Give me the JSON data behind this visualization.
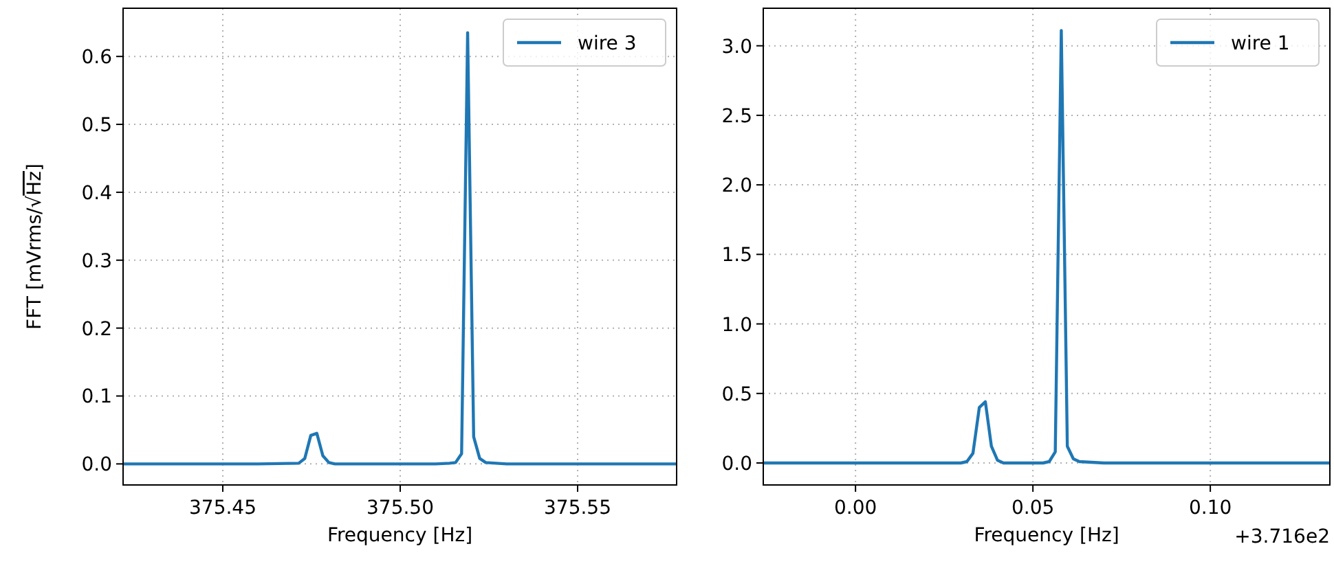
{
  "chart_data": [
    {
      "type": "line",
      "xlabel": "Frequency [Hz]",
      "ylabel": "FFT [mVrms/√Hz]",
      "xlim": [
        375.4219,
        375.5779
      ],
      "ylim": [
        -0.031,
        0.671
      ],
      "xticks": [
        {
          "value": 375.45,
          "label": "375.45"
        },
        {
          "value": 375.5,
          "label": "375.50"
        },
        {
          "value": 375.55,
          "label": "375.55"
        }
      ],
      "yticks": [
        {
          "value": 0,
          "label": "0.0"
        },
        0.1,
        0.2,
        0.3,
        0.4,
        0.5,
        0.6
      ],
      "grid": true,
      "legend": "top right",
      "line_style": "solid",
      "series": [
        {
          "name": "wire 3",
          "color": "#1f77b4",
          "x": [
            375.4219,
            375.44,
            375.46,
            375.4714,
            375.4731,
            375.4748,
            375.4765,
            375.4782,
            375.4799,
            375.4816,
            375.49,
            375.5,
            375.51,
            375.5139,
            375.5156,
            375.5173,
            375.519,
            375.5207,
            375.5224,
            375.5241,
            375.53,
            375.55,
            375.5779
          ],
          "values": [
            0,
            0,
            0,
            0.001,
            0.008,
            0.042,
            0.045,
            0.012,
            0.002,
            0,
            0,
            0,
            0,
            0.001,
            0.002,
            0.015,
            0.635,
            0.04,
            0.008,
            0.002,
            0,
            0,
            0
          ]
        }
      ]
    },
    {
      "type": "line",
      "xlabel": "Frequency [Hz]",
      "annotations": [
        "+3.716e2"
      ],
      "xlim": [
        -0.026,
        0.1337
      ],
      "ylim": [
        -0.158,
        3.27
      ],
      "xticks": [
        {
          "value": 0,
          "label": "0.00"
        },
        0.05,
        {
          "value": 0.1,
          "label": "0.10"
        }
      ],
      "yticks": [
        {
          "value": 0,
          "label": "0.0"
        },
        0.5,
        {
          "value": 1,
          "label": "1.0"
        },
        1.5,
        {
          "value": 2,
          "label": "2.0"
        },
        2.5,
        {
          "value": 3,
          "label": "3.0"
        }
      ],
      "grid": true,
      "legend": "top right",
      "line_style": "solid",
      "series": [
        {
          "name": "wire 1",
          "color": "#1f77b4",
          "x": [
            -0.026,
            0,
            0.02,
            0.0297,
            0.0314,
            0.0331,
            0.0349,
            0.0366,
            0.0383,
            0.04,
            0.0417,
            0.05,
            0.0529,
            0.0546,
            0.0563,
            0.058,
            0.0597,
            0.0614,
            0.0631,
            0.07,
            0.1,
            0.1337
          ],
          "values": [
            0,
            0,
            0,
            0,
            0.01,
            0.07,
            0.4,
            0.44,
            0.12,
            0.02,
            0,
            0,
            0,
            0.01,
            0.08,
            3.11,
            0.12,
            0.03,
            0.01,
            0,
            0,
            0
          ]
        }
      ]
    }
  ]
}
